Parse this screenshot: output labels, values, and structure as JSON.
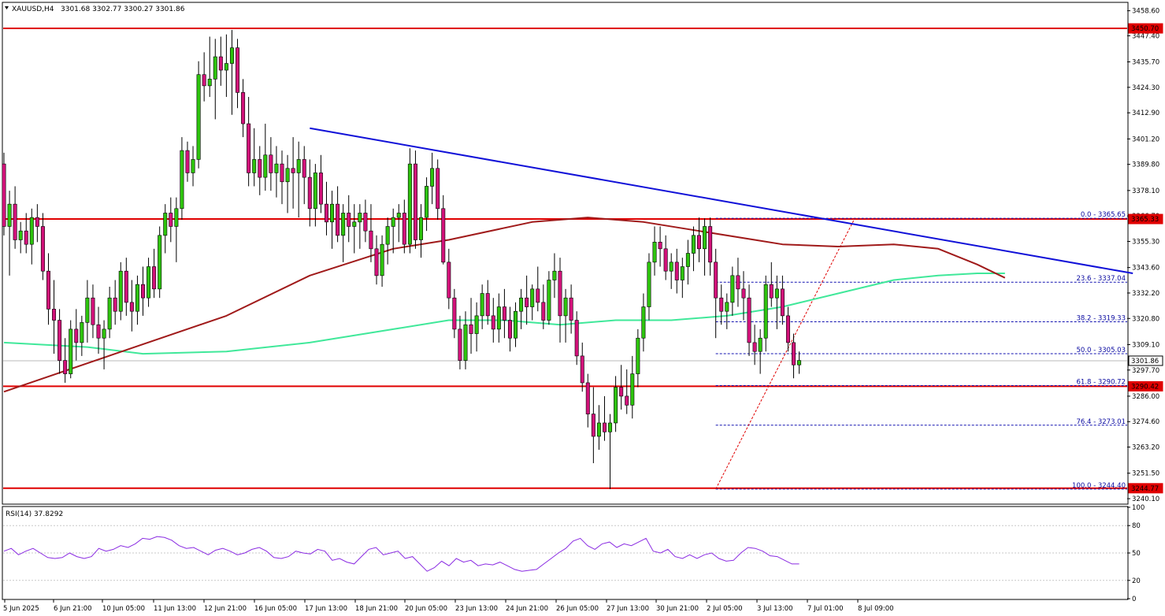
{
  "header": {
    "symbol": "XAUUSD,H4",
    "ohlc": "3301.68 3302.77 3300.27 3301.86"
  },
  "colors": {
    "bull": "#2ec40e",
    "bear": "#d2127a",
    "hline": "#e00000",
    "trendline": "#1010d8",
    "ma_fast": "#a01a1a",
    "ma_slow": "#40e89a",
    "fib": "#1010b0",
    "rsi": "#8a2be2"
  },
  "price_axis": {
    "ticks": [
      "3458.60",
      "3447.40",
      "3435.70",
      "3424.30",
      "3412.90",
      "3401.20",
      "3389.80",
      "3378.10",
      "3366.70",
      "3355.30",
      "3343.60",
      "3332.20",
      "3320.80",
      "3309.10",
      "3297.70",
      "3286.00",
      "3274.60",
      "3263.20",
      "3251.50",
      "3240.10"
    ],
    "level_labels": [
      "3450.70",
      "3365.33",
      "3301.86",
      "3290.42",
      "3244.77"
    ]
  },
  "time_axis": {
    "labels": [
      "5 Jun 2025",
      "6 Jun 21:00",
      "10 Jun 05:00",
      "11 Jun 13:00",
      "12 Jun 21:00",
      "16 Jun 05:00",
      "17 Jun 13:00",
      "18 Jun 21:00",
      "20 Jun 05:00",
      "23 Jun 13:00",
      "24 Jun 21:00",
      "26 Jun 05:00",
      "27 Jun 13:00",
      "30 Jun 21:00",
      "2 Jul 05:00",
      "3 Jul 13:00",
      "7 Jul 01:00",
      "8 Jul 09:00"
    ]
  },
  "fib_labels": [
    "0.0 - 3365.65",
    "23.6 - 3337.04",
    "38.2 - 3319.33",
    "50.0 - 3305.03",
    "61.8 - 3290.72",
    "76.4 - 3273.01",
    "100.0 - 3244.40"
  ],
  "rsi": {
    "label": "RSI(14) 37.8292",
    "ticks": [
      "100",
      "80",
      "50",
      "20",
      "0"
    ]
  },
  "chart_data": {
    "type": "candlestick",
    "symbol": "XAUUSD",
    "timeframe": "H4",
    "ylim": [
      3238,
      3462
    ],
    "horizontal_levels": [
      3450.7,
      3365.33,
      3290.42,
      3244.77
    ],
    "last_price": 3301.86,
    "fibonacci": [
      {
        "ratio": 0.0,
        "price": 3365.65
      },
      {
        "ratio": 23.6,
        "price": 3337.04
      },
      {
        "ratio": 38.2,
        "price": 3319.33
      },
      {
        "ratio": 50.0,
        "price": 3305.03
      },
      {
        "ratio": 61.8,
        "price": 3290.72
      },
      {
        "ratio": 76.4,
        "price": 3273.01
      },
      {
        "ratio": 100.0,
        "price": 3244.4
      }
    ],
    "trendline": {
      "from": {
        "bar": 55,
        "price": 3406
      },
      "to": {
        "bar": 203,
        "price": 3341
      }
    },
    "fib_swing": {
      "from": {
        "bar": 128,
        "price": 3244.4
      },
      "to": {
        "bar": 153,
        "price": 3365.65
      }
    },
    "candles": [
      [
        3390,
        3395,
        3358,
        3362
      ],
      [
        3362,
        3378,
        3340,
        3372
      ],
      [
        3372,
        3380,
        3352,
        3356
      ],
      [
        3356,
        3364,
        3350,
        3360
      ],
      [
        3360,
        3368,
        3350,
        3354
      ],
      [
        3354,
        3370,
        3345,
        3366
      ],
      [
        3366,
        3372,
        3355,
        3362
      ],
      [
        3362,
        3368,
        3338,
        3342
      ],
      [
        3342,
        3350,
        3318,
        3325
      ],
      [
        3325,
        3338,
        3305,
        3320
      ],
      [
        3320,
        3325,
        3296,
        3302
      ],
      [
        3302,
        3312,
        3292,
        3296
      ],
      [
        3296,
        3320,
        3294,
        3316
      ],
      [
        3316,
        3325,
        3302,
        3310
      ],
      [
        3310,
        3322,
        3304,
        3319
      ],
      [
        3319,
        3338,
        3310,
        3330
      ],
      [
        3330,
        3336,
        3312,
        3318
      ],
      [
        3318,
        3326,
        3305,
        3312
      ],
      [
        3312,
        3320,
        3298,
        3316
      ],
      [
        3316,
        3335,
        3312,
        3330
      ],
      [
        3330,
        3338,
        3318,
        3324
      ],
      [
        3324,
        3346,
        3320,
        3342
      ],
      [
        3342,
        3348,
        3322,
        3328
      ],
      [
        3328,
        3338,
        3315,
        3324
      ],
      [
        3324,
        3340,
        3318,
        3336
      ],
      [
        3336,
        3344,
        3322,
        3330
      ],
      [
        3330,
        3348,
        3326,
        3344
      ],
      [
        3344,
        3352,
        3330,
        3334
      ],
      [
        3334,
        3362,
        3330,
        3358
      ],
      [
        3358,
        3372,
        3350,
        3368
      ],
      [
        3368,
        3375,
        3355,
        3362
      ],
      [
        3362,
        3375,
        3346,
        3370
      ],
      [
        3370,
        3402,
        3365,
        3396
      ],
      [
        3396,
        3400,
        3382,
        3386
      ],
      [
        3386,
        3398,
        3380,
        3392
      ],
      [
        3392,
        3436,
        3388,
        3430
      ],
      [
        3430,
        3440,
        3418,
        3425
      ],
      [
        3425,
        3447,
        3420,
        3428
      ],
      [
        3428,
        3446,
        3410,
        3438
      ],
      [
        3438,
        3447,
        3425,
        3432
      ],
      [
        3432,
        3448,
        3420,
        3435
      ],
      [
        3435,
        3450,
        3412,
        3442
      ],
      [
        3442,
        3446,
        3415,
        3422
      ],
      [
        3422,
        3428,
        3402,
        3408
      ],
      [
        3408,
        3420,
        3380,
        3386
      ],
      [
        3386,
        3406,
        3380,
        3392
      ],
      [
        3392,
        3398,
        3376,
        3384
      ],
      [
        3384,
        3408,
        3378,
        3394
      ],
      [
        3394,
        3402,
        3378,
        3386
      ],
      [
        3386,
        3398,
        3375,
        3390
      ],
      [
        3390,
        3396,
        3372,
        3382
      ],
      [
        3382,
        3394,
        3368,
        3388
      ],
      [
        3388,
        3402,
        3370,
        3386
      ],
      [
        3386,
        3400,
        3366,
        3392
      ],
      [
        3392,
        3398,
        3372,
        3384
      ],
      [
        3384,
        3392,
        3362,
        3370
      ],
      [
        3370,
        3390,
        3362,
        3386
      ],
      [
        3386,
        3394,
        3368,
        3372
      ],
      [
        3372,
        3382,
        3358,
        3364
      ],
      [
        3364,
        3378,
        3352,
        3372
      ],
      [
        3372,
        3380,
        3355,
        3358
      ],
      [
        3358,
        3372,
        3346,
        3368
      ],
      [
        3368,
        3376,
        3355,
        3362
      ],
      [
        3362,
        3372,
        3350,
        3364
      ],
      [
        3364,
        3372,
        3352,
        3368
      ],
      [
        3368,
        3374,
        3355,
        3360
      ],
      [
        3360,
        3372,
        3346,
        3352
      ],
      [
        3352,
        3358,
        3336,
        3340
      ],
      [
        3340,
        3358,
        3335,
        3354
      ],
      [
        3354,
        3366,
        3345,
        3362
      ],
      [
        3362,
        3370,
        3350,
        3366
      ],
      [
        3366,
        3372,
        3355,
        3368
      ],
      [
        3368,
        3374,
        3350,
        3354
      ],
      [
        3354,
        3397,
        3350,
        3390
      ],
      [
        3390,
        3396,
        3352,
        3356
      ],
      [
        3356,
        3372,
        3348,
        3366
      ],
      [
        3366,
        3384,
        3360,
        3380
      ],
      [
        3380,
        3395,
        3372,
        3388
      ],
      [
        3388,
        3392,
        3365,
        3370
      ],
      [
        3370,
        3376,
        3345,
        3346
      ],
      [
        3346,
        3352,
        3325,
        3330
      ],
      [
        3330,
        3334,
        3312,
        3316
      ],
      [
        3316,
        3322,
        3298,
        3302
      ],
      [
        3302,
        3324,
        3298,
        3318
      ],
      [
        3318,
        3330,
        3305,
        3314
      ],
      [
        3314,
        3328,
        3306,
        3322
      ],
      [
        3322,
        3336,
        3316,
        3332
      ],
      [
        3332,
        3338,
        3318,
        3322
      ],
      [
        3322,
        3330,
        3310,
        3316
      ],
      [
        3316,
        3332,
        3310,
        3326
      ],
      [
        3326,
        3334,
        3312,
        3320
      ],
      [
        3320,
        3326,
        3306,
        3312
      ],
      [
        3312,
        3328,
        3308,
        3324
      ],
      [
        3324,
        3334,
        3316,
        3330
      ],
      [
        3330,
        3340,
        3318,
        3326
      ],
      [
        3326,
        3336,
        3320,
        3334
      ],
      [
        3334,
        3344,
        3324,
        3328
      ],
      [
        3328,
        3336,
        3316,
        3320
      ],
      [
        3320,
        3342,
        3318,
        3338
      ],
      [
        3338,
        3350,
        3330,
        3342
      ],
      [
        3342,
        3348,
        3310,
        3322
      ],
      [
        3322,
        3334,
        3310,
        3330
      ],
      [
        3330,
        3336,
        3314,
        3320
      ],
      [
        3320,
        3324,
        3300,
        3304
      ],
      [
        3304,
        3310,
        3288,
        3292
      ],
      [
        3292,
        3296,
        3272,
        3278
      ],
      [
        3278,
        3290,
        3256,
        3268
      ],
      [
        3268,
        3282,
        3262,
        3274
      ],
      [
        3274,
        3286,
        3266,
        3270
      ],
      [
        3270,
        3278,
        3244.4,
        3274
      ],
      [
        3274,
        3295,
        3270,
        3290
      ],
      [
        3290,
        3300,
        3280,
        3286
      ],
      [
        3286,
        3298,
        3278,
        3282
      ],
      [
        3282,
        3304,
        3276,
        3296
      ],
      [
        3296,
        3316,
        3290,
        3312
      ],
      [
        3312,
        3332,
        3306,
        3326
      ],
      [
        3326,
        3350,
        3320,
        3346
      ],
      [
        3346,
        3362,
        3340,
        3355
      ],
      [
        3355,
        3362,
        3344,
        3352
      ],
      [
        3352,
        3358,
        3338,
        3342
      ],
      [
        3342,
        3350,
        3334,
        3346
      ],
      [
        3346,
        3352,
        3332,
        3338
      ],
      [
        3338,
        3348,
        3330,
        3344
      ],
      [
        3344,
        3356,
        3336,
        3350
      ],
      [
        3350,
        3362,
        3342,
        3358
      ],
      [
        3358,
        3366,
        3346,
        3352
      ],
      [
        3352,
        3365.65,
        3340,
        3362
      ],
      [
        3362,
        3366,
        3340,
        3346
      ],
      [
        3346,
        3352,
        3312,
        3330
      ],
      [
        3330,
        3336,
        3318,
        3324
      ],
      [
        3324,
        3332,
        3316,
        3328
      ],
      [
        3328,
        3344,
        3322,
        3340
      ],
      [
        3340,
        3348,
        3326,
        3334
      ],
      [
        3334,
        3342,
        3320,
        3330
      ],
      [
        3330,
        3336,
        3304,
        3310
      ],
      [
        3310,
        3318,
        3300,
        3306
      ],
      [
        3306,
        3316,
        3296,
        3312
      ],
      [
        3312,
        3340,
        3306,
        3336
      ],
      [
        3336,
        3346,
        3326,
        3330
      ],
      [
        3330,
        3340,
        3316,
        3334
      ],
      [
        3334,
        3340,
        3318,
        3322
      ],
      [
        3322,
        3326,
        3306,
        3310
      ],
      [
        3310,
        3314,
        3294,
        3300
      ],
      [
        3300,
        3306,
        3296,
        3302
      ]
    ],
    "ma_fast_points": [
      [
        0,
        3288
      ],
      [
        20,
        3305
      ],
      [
        40,
        3322
      ],
      [
        55,
        3340
      ],
      [
        70,
        3352
      ],
      [
        80,
        3356
      ],
      [
        95,
        3364
      ],
      [
        105,
        3366
      ],
      [
        115,
        3364
      ],
      [
        125,
        3360
      ],
      [
        135,
        3356
      ],
      [
        140,
        3354
      ],
      [
        150,
        3353
      ],
      [
        160,
        3354
      ],
      [
        168,
        3352
      ],
      [
        175,
        3345
      ],
      [
        180,
        3339
      ]
    ],
    "ma_slow_points": [
      [
        0,
        3310
      ],
      [
        15,
        3308
      ],
      [
        25,
        3305
      ],
      [
        40,
        3306
      ],
      [
        55,
        3310
      ],
      [
        70,
        3316
      ],
      [
        80,
        3320
      ],
      [
        90,
        3320
      ],
      [
        100,
        3318
      ],
      [
        110,
        3320
      ],
      [
        120,
        3320
      ],
      [
        130,
        3322
      ],
      [
        140,
        3326
      ],
      [
        150,
        3332
      ],
      [
        160,
        3338
      ],
      [
        168,
        3340
      ],
      [
        175,
        3341
      ],
      [
        180,
        3341
      ]
    ],
    "rsi_values": [
      52,
      55,
      48,
      52,
      55,
      50,
      45,
      44,
      45,
      50,
      46,
      44,
      46,
      55,
      52,
      54,
      58,
      56,
      60,
      66,
      65,
      68,
      67,
      64,
      58,
      55,
      56,
      52,
      48,
      53,
      55,
      52,
      48,
      50,
      54,
      56,
      52,
      45,
      44,
      46,
      52,
      50,
      49,
      54,
      52,
      42,
      44,
      40,
      38,
      46,
      54,
      56,
      48,
      50,
      52,
      44,
      46,
      38,
      30,
      34,
      41,
      36,
      44,
      40,
      42,
      36,
      38,
      37,
      40,
      36,
      32,
      30,
      31,
      32,
      38,
      44,
      50,
      55,
      63,
      66,
      58,
      54,
      60,
      62,
      56,
      60,
      58,
      62,
      66,
      52,
      50,
      54,
      46,
      44,
      48,
      44,
      48,
      50,
      44,
      41,
      42,
      50,
      56,
      55,
      52,
      47,
      46,
      42,
      38,
      38
    ]
  }
}
